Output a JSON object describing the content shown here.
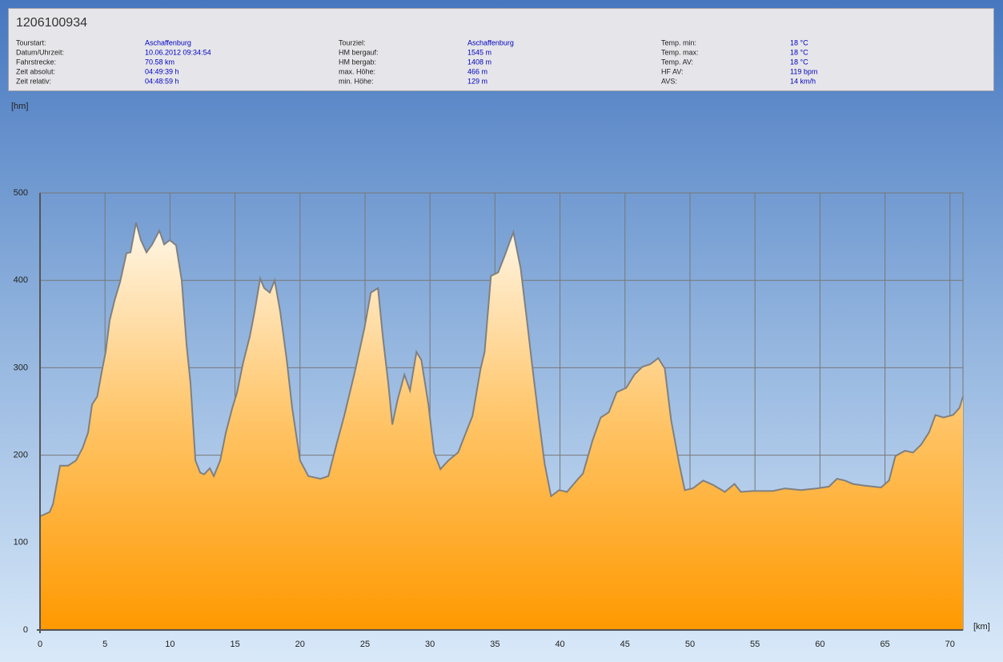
{
  "header": {
    "title": "1206100934",
    "columns": [
      [
        {
          "label": "Tourstart:",
          "value": "Aschaffenburg"
        },
        {
          "label": "Datum/Uhrzeit:",
          "value": "10.06.2012 09:34:54"
        },
        {
          "label": "Fahrstrecke:",
          "value": "70.58 km"
        },
        {
          "label": "Zeit absolut:",
          "value": "04:49:39 h"
        },
        {
          "label": "Zeit relativ:",
          "value": "04:48:59 h"
        }
      ],
      [
        {
          "label": "Tourziel:",
          "value": "Aschaffenburg"
        },
        {
          "label": "HM bergauf:",
          "value": "1545 m"
        },
        {
          "label": "HM bergab:",
          "value": "1408 m"
        },
        {
          "label": "max. Höhe:",
          "value": "466 m"
        },
        {
          "label": "min. Höhe:",
          "value": "129 m"
        }
      ],
      [
        {
          "label": "Temp. min:",
          "value": "18 °C"
        },
        {
          "label": "Temp. max:",
          "value": "18 °C"
        },
        {
          "label": "Temp. AV:",
          "value": "18 °C"
        },
        {
          "label": "HF AV:",
          "value": "119 bpm"
        },
        {
          "label": "AVS:",
          "value": "14 km/h"
        }
      ]
    ]
  },
  "chart_data": {
    "type": "area",
    "y_label": "[hm]",
    "x_label": "[km]",
    "x": [
      0,
      0.74,
      1.0,
      1.54,
      2.16,
      2.77,
      3.27,
      3.7,
      4.0,
      4.4,
      4.74,
      5.05,
      5.36,
      5.73,
      6.16,
      6.65,
      6.96,
      7.39,
      7.76,
      8.19,
      8.63,
      9.18,
      9.55,
      9.98,
      10.47,
      10.9,
      11.27,
      11.58,
      11.95,
      12.32,
      12.63,
      13.06,
      13.37,
      13.86,
      14.3,
      14.79,
      15.16,
      15.6,
      16.14,
      16.5,
      16.94,
      17.25,
      17.68,
      18.05,
      18.48,
      18.98,
      19.4,
      20.0,
      20.64,
      21.57,
      22.18,
      22.8,
      23.4,
      24.21,
      24.95,
      25.45,
      26.0,
      26.37,
      26.8,
      27.1,
      27.5,
      28.03,
      28.46,
      28.96,
      29.33,
      29.88,
      30.31,
      30.8,
      31.42,
      32.16,
      32.66,
      33.27,
      33.89,
      34.2,
      34.69,
      35.24,
      35.74,
      36.41,
      36.97,
      37.46,
      37.89,
      38.38,
      38.82,
      39.31,
      39.93,
      40.54,
      41.28,
      41.77,
      42.51,
      43.13,
      43.75,
      44.36,
      45.1,
      45.72,
      46.33,
      46.95,
      47.56,
      48.06,
      48.55,
      49.17,
      49.6,
      50.22,
      51.02,
      51.76,
      52.68,
      53.42,
      53.91,
      54.84,
      56.38,
      57.3,
      58.53,
      59.77,
      60.69,
      61.31,
      61.92,
      62.54,
      63.46,
      64.7,
      65.31,
      65.8,
      66.54,
      67.16,
      67.78,
      68.39,
      68.88,
      69.5,
      70.24,
      70.73,
      71.0
    ],
    "values": [
      130,
      135,
      144,
      188,
      188,
      194,
      208,
      226,
      258,
      267,
      295,
      318,
      354,
      377,
      398,
      431,
      432,
      466,
      446,
      432,
      441,
      457,
      441,
      446,
      440,
      400,
      327,
      281,
      194,
      180,
      178,
      185,
      176,
      194,
      226,
      254,
      272,
      304,
      336,
      364,
      402,
      391,
      386,
      400,
      364,
      309,
      254,
      194,
      176,
      173,
      176,
      212,
      245,
      295,
      345,
      386,
      391,
      336,
      281,
      235,
      263,
      292,
      274,
      318,
      309,
      258,
      203,
      184,
      194,
      203,
      222,
      245,
      299,
      318,
      405,
      409,
      428,
      455,
      414,
      354,
      299,
      240,
      190,
      153,
      160,
      158,
      171,
      179,
      217,
      243,
      249,
      272,
      277,
      292,
      301,
      304,
      311,
      299,
      240,
      190,
      160,
      162,
      171,
      166,
      158,
      167,
      158,
      159,
      159,
      162,
      160,
      162,
      164,
      173,
      171,
      167,
      165,
      163,
      171,
      199,
      205,
      203,
      212,
      226,
      246,
      243,
      246,
      254,
      267
    ],
    "color": "#ff9900",
    "line_color": "#808080",
    "xlim": [
      0,
      71
    ],
    "ylim": [
      0,
      500
    ],
    "xticks": [
      0,
      5,
      10,
      15,
      20,
      25,
      30,
      35,
      40,
      45,
      50,
      55,
      60,
      65,
      70
    ],
    "yticks": [
      0,
      100,
      200,
      300,
      400,
      500
    ],
    "grid": true
  }
}
